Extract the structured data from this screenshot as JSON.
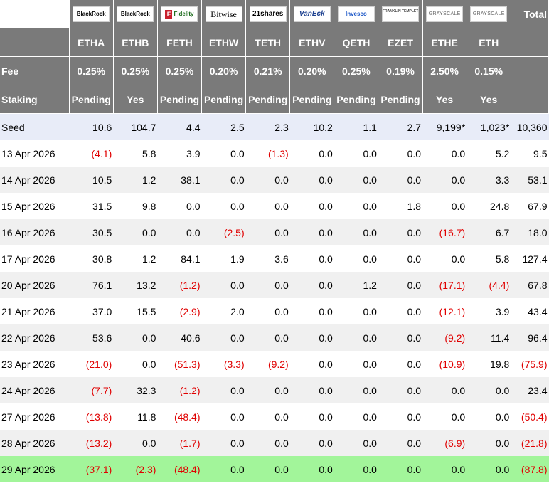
{
  "header": {
    "issuer_logos": [
      {
        "name": "blackrock-logo",
        "text": "BlackRock"
      },
      {
        "name": "blackrock-logo",
        "text": "BlackRock"
      },
      {
        "name": "fidelity-logo",
        "text": "Fidelity"
      },
      {
        "name": "bitwise-logo",
        "text": "Bitwise"
      },
      {
        "name": "21shares-logo",
        "text": "21shares"
      },
      {
        "name": "vaneck-logo",
        "text": "VanEck"
      },
      {
        "name": "invesco-logo",
        "text": "Invesco"
      },
      {
        "name": "franklin-templeton-logo",
        "text": "FRANKLIN TEMPLETON"
      },
      {
        "name": "grayscale-logo",
        "text": "GRAYSCALE"
      },
      {
        "name": "grayscale-logo",
        "text": "GRAYSCALE"
      }
    ],
    "total_label": "Total",
    "tickers": [
      "ETHA",
      "ETHB",
      "FETH",
      "ETHW",
      "TETH",
      "ETHV",
      "QETH",
      "EZET",
      "ETHE",
      "ETH"
    ],
    "fee_label": "Fee",
    "fees": [
      "0.25%",
      "0.25%",
      "0.25%",
      "0.20%",
      "0.21%",
      "0.20%",
      "0.25%",
      "0.19%",
      "2.50%",
      "0.15%"
    ],
    "staking_label": "Staking",
    "staking": [
      "Pending",
      "Yes",
      "Pending",
      "Pending",
      "Pending",
      "Pending",
      "Pending",
      "Pending",
      "Yes",
      "Yes"
    ]
  },
  "colors": {
    "header_bg": "#7a7a7a",
    "negative": "#e00000",
    "seed_bg": "#e8ecf8",
    "last_row_bg": "#a2f59a"
  },
  "rows": [
    {
      "label": "Seed",
      "values": [
        "10.6",
        "104.7",
        "4.4",
        "2.5",
        "2.3",
        "10.2",
        "1.1",
        "2.7",
        "9,199*",
        "1,023*",
        "10,360"
      ]
    },
    {
      "label": "13 Apr 2026",
      "values": [
        "(4.1)",
        "5.8",
        "3.9",
        "0.0",
        "(1.3)",
        "0.0",
        "0.0",
        "0.0",
        "0.0",
        "5.2",
        "9.5"
      ]
    },
    {
      "label": "14 Apr 2026",
      "values": [
        "10.5",
        "1.2",
        "38.1",
        "0.0",
        "0.0",
        "0.0",
        "0.0",
        "0.0",
        "0.0",
        "3.3",
        "53.1"
      ]
    },
    {
      "label": "15 Apr 2026",
      "values": [
        "31.5",
        "9.8",
        "0.0",
        "0.0",
        "0.0",
        "0.0",
        "0.0",
        "1.8",
        "0.0",
        "24.8",
        "67.9"
      ]
    },
    {
      "label": "16 Apr 2026",
      "values": [
        "30.5",
        "0.0",
        "0.0",
        "(2.5)",
        "0.0",
        "0.0",
        "0.0",
        "0.0",
        "(16.7)",
        "6.7",
        "18.0"
      ]
    },
    {
      "label": "17 Apr 2026",
      "values": [
        "30.8",
        "1.2",
        "84.1",
        "1.9",
        "3.6",
        "0.0",
        "0.0",
        "0.0",
        "0.0",
        "5.8",
        "127.4"
      ]
    },
    {
      "label": "20 Apr 2026",
      "values": [
        "76.1",
        "13.2",
        "(1.2)",
        "0.0",
        "0.0",
        "0.0",
        "1.2",
        "0.0",
        "(17.1)",
        "(4.4)",
        "67.8"
      ]
    },
    {
      "label": "21 Apr 2026",
      "values": [
        "37.0",
        "15.5",
        "(2.9)",
        "2.0",
        "0.0",
        "0.0",
        "0.0",
        "0.0",
        "(12.1)",
        "3.9",
        "43.4"
      ]
    },
    {
      "label": "22 Apr 2026",
      "values": [
        "53.6",
        "0.0",
        "40.6",
        "0.0",
        "0.0",
        "0.0",
        "0.0",
        "0.0",
        "(9.2)",
        "11.4",
        "96.4"
      ]
    },
    {
      "label": "23 Apr 2026",
      "values": [
        "(21.0)",
        "0.0",
        "(51.3)",
        "(3.3)",
        "(9.2)",
        "0.0",
        "0.0",
        "0.0",
        "(10.9)",
        "19.8",
        "(75.9)"
      ]
    },
    {
      "label": "24 Apr 2026",
      "values": [
        "(7.7)",
        "32.3",
        "(1.2)",
        "0.0",
        "0.0",
        "0.0",
        "0.0",
        "0.0",
        "0.0",
        "0.0",
        "23.4"
      ]
    },
    {
      "label": "27 Apr 2026",
      "values": [
        "(13.8)",
        "11.8",
        "(48.4)",
        "0.0",
        "0.0",
        "0.0",
        "0.0",
        "0.0",
        "0.0",
        "0.0",
        "(50.4)"
      ]
    },
    {
      "label": "28 Apr 2026",
      "values": [
        "(13.2)",
        "0.0",
        "(1.7)",
        "0.0",
        "0.0",
        "0.0",
        "0.0",
        "0.0",
        "(6.9)",
        "0.0",
        "(21.8)"
      ]
    },
    {
      "label": "29 Apr 2026",
      "values": [
        "(37.1)",
        "(2.3)",
        "(48.4)",
        "0.0",
        "0.0",
        "0.0",
        "0.0",
        "0.0",
        "0.0",
        "0.0",
        "(87.8)"
      ]
    }
  ]
}
